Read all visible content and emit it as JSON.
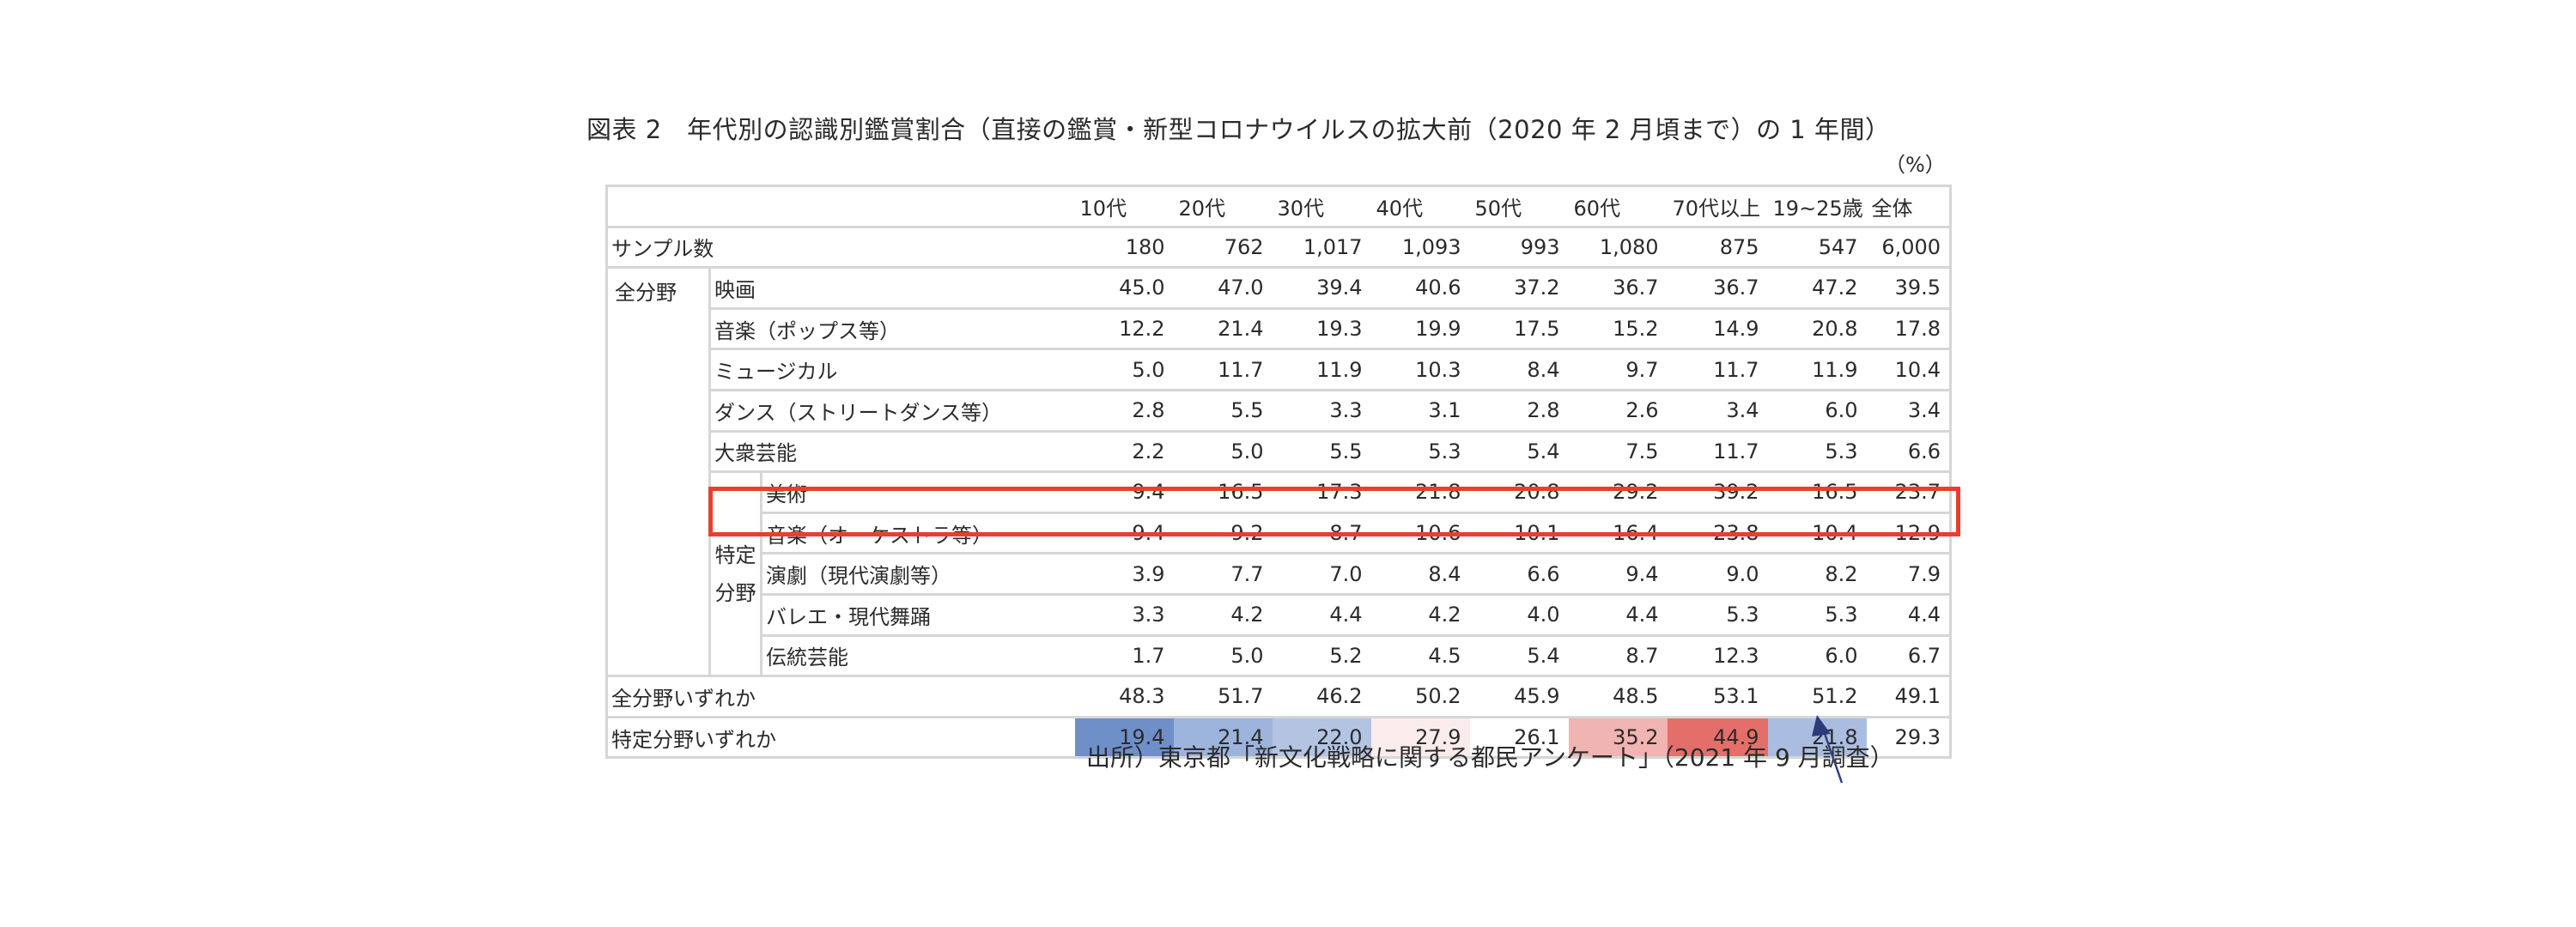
{
  "title": "図表 2　年代別の認識別鑑賞割合（直接の鑑賞・新型コロナウイルスの拡大前（2020 年 2 月頃まで）の 1 年間）",
  "unit": "（%）",
  "source": "出所）東京都「新文化戦略に関する都民アンケート」（2021 年 9 月調査）",
  "chart_data": {
    "type": "table",
    "columns": [
      "10代",
      "20代",
      "30代",
      "40代",
      "50代",
      "60代",
      "70代以上",
      "19~25歳",
      "全体"
    ],
    "sample_row": {
      "label": "サンプル数",
      "values": [
        "180",
        "762",
        "1,017",
        "1,093",
        "993",
        "1,080",
        "875",
        "547",
        "6,000"
      ]
    },
    "groups": {
      "all_fields": "全分野",
      "specific_line1": "特定",
      "specific_line2": "分野"
    },
    "rows": [
      {
        "label": "映画",
        "values": [
          "45.0",
          "47.0",
          "39.4",
          "40.6",
          "37.2",
          "36.7",
          "36.7",
          "47.2",
          "39.5"
        ]
      },
      {
        "label": "音楽（ポップス等）",
        "values": [
          "12.2",
          "21.4",
          "19.3",
          "19.9",
          "17.5",
          "15.2",
          "14.9",
          "20.8",
          "17.8"
        ]
      },
      {
        "label": "ミュージカル",
        "values": [
          "5.0",
          "11.7",
          "11.9",
          "10.3",
          "8.4",
          "9.7",
          "11.7",
          "11.9",
          "10.4"
        ]
      },
      {
        "label": "ダンス（ストリートダンス等）",
        "values": [
          "2.8",
          "5.5",
          "3.3",
          "3.1",
          "2.8",
          "2.6",
          "3.4",
          "6.0",
          "3.4"
        ]
      },
      {
        "label": "大衆芸能",
        "values": [
          "2.2",
          "5.0",
          "5.5",
          "5.3",
          "5.4",
          "7.5",
          "11.7",
          "5.3",
          "6.6"
        ]
      },
      {
        "label": "美術",
        "values": [
          "9.4",
          "16.5",
          "17.3",
          "21.8",
          "20.8",
          "29.2",
          "39.2",
          "16.5",
          "23.7"
        ]
      },
      {
        "label": "音楽（オーケストラ等）",
        "values": [
          "9.4",
          "9.2",
          "8.7",
          "10.6",
          "10.1",
          "16.4",
          "23.8",
          "10.4",
          "12.9"
        ]
      },
      {
        "label": "演劇（現代演劇等）",
        "values": [
          "3.9",
          "7.7",
          "7.0",
          "8.4",
          "6.6",
          "9.4",
          "9.0",
          "8.2",
          "7.9"
        ]
      },
      {
        "label": "バレエ・現代舞踊",
        "values": [
          "3.3",
          "4.2",
          "4.4",
          "4.2",
          "4.0",
          "4.4",
          "5.3",
          "5.3",
          "4.4"
        ]
      },
      {
        "label": "伝統芸能",
        "values": [
          "1.7",
          "5.0",
          "5.2",
          "4.5",
          "5.4",
          "8.7",
          "12.3",
          "6.0",
          "6.7"
        ]
      }
    ],
    "any_all": {
      "label": "全分野いずれか",
      "values": [
        "48.3",
        "51.7",
        "46.2",
        "50.2",
        "45.9",
        "48.5",
        "53.1",
        "51.2",
        "49.1"
      ]
    },
    "any_specific": {
      "label": "特定分野いずれか",
      "values": [
        "19.4",
        "21.4",
        "22.0",
        "27.9",
        "26.1",
        "35.2",
        "44.9",
        "21.8",
        "29.3"
      ]
    },
    "any_specific_colors": [
      "#6f8fc9",
      "#9cb3dc",
      "#b3c4e3",
      "#fbecec",
      "#ffffff",
      "#f0b4b2",
      "#e46f6a",
      "#aabde0",
      "#ffffff"
    ],
    "highlight_color": "#e8402e"
  }
}
